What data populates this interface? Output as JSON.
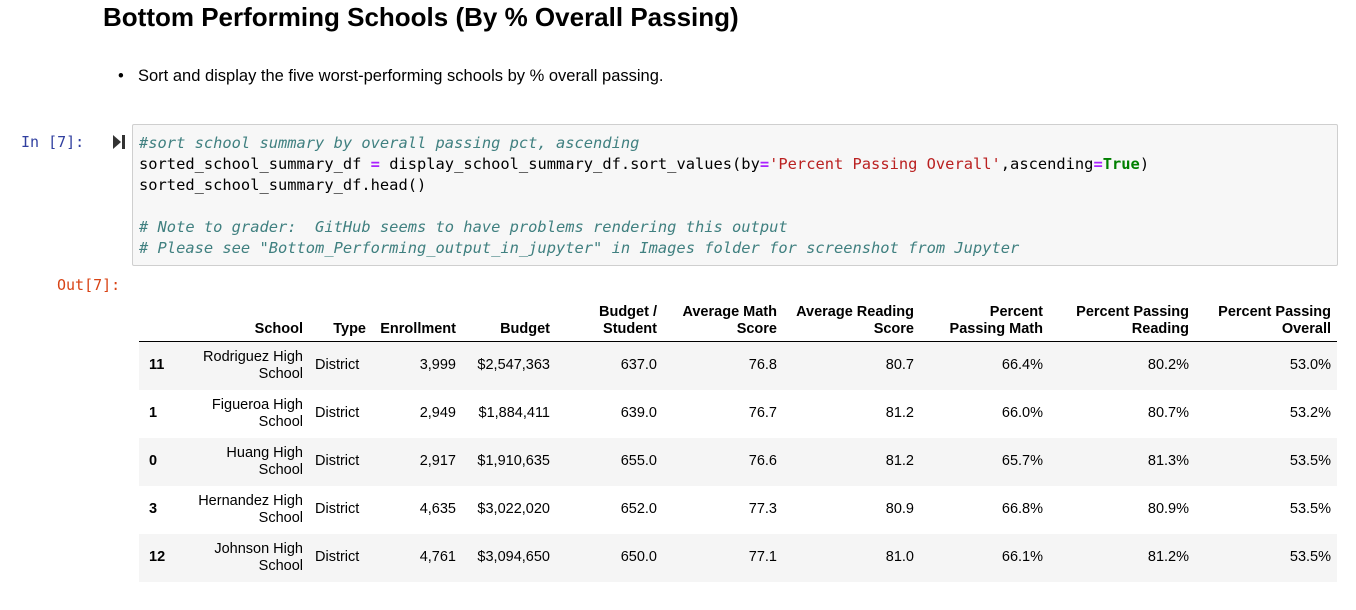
{
  "markdown": {
    "title": "Bottom Performing Schools (By % Overall Passing)",
    "bullets": [
      "Sort and display the five worst-performing schools by % overall passing."
    ]
  },
  "cell": {
    "in_prompt": "In [7]:",
    "out_prompt": "Out[7]:",
    "run_icon": "step-run-icon",
    "code": {
      "line1": "#sort school summary by overall passing pct, ascending",
      "line2_a": "sorted_school_summary_df ",
      "line2_eq": "=",
      "line2_b": " display_school_summary_df.sort_values(by",
      "line2_eq2": "=",
      "line2_str": "'Percent Passing Overall'",
      "line2_c": ",ascending",
      "line2_eq3": "=",
      "line2_kw": "True",
      "line2_d": ")",
      "line3": "sorted_school_summary_df.head()",
      "line5": "# Note to grader:  GitHub seems to have problems rendering this output",
      "line6": "# Please see \"Bottom_Performing_output_in_jupyter\" in Images folder for screenshot from Jupyter"
    }
  },
  "table": {
    "headers": {
      "school": "School",
      "type": "Type",
      "enrollment": "Enrollment",
      "budget": "Budget",
      "budget_per_student": [
        "Budget /",
        "Student"
      ],
      "avg_math": [
        "Average Math",
        "Score"
      ],
      "avg_reading": [
        "Average Reading",
        "Score"
      ],
      "pct_math": [
        "Percent",
        "Passing Math"
      ],
      "pct_reading": [
        "Percent Passing",
        "Reading"
      ],
      "pct_overall": [
        "Percent Passing",
        "Overall"
      ]
    },
    "rows": [
      {
        "index": "11",
        "school": [
          "Rodriguez High",
          "School"
        ],
        "type": "District",
        "enrollment": "3,999",
        "budget": "$2,547,363",
        "budget_per_student": "637.0",
        "avg_math": "76.8",
        "avg_reading": "80.7",
        "pct_math": "66.4%",
        "pct_reading": "80.2%",
        "pct_overall": "53.0%"
      },
      {
        "index": "1",
        "school": [
          "Figueroa High",
          "School"
        ],
        "type": "District",
        "enrollment": "2,949",
        "budget": "$1,884,411",
        "budget_per_student": "639.0",
        "avg_math": "76.7",
        "avg_reading": "81.2",
        "pct_math": "66.0%",
        "pct_reading": "80.7%",
        "pct_overall": "53.2%"
      },
      {
        "index": "0",
        "school": [
          "Huang High",
          "School"
        ],
        "type": "District",
        "enrollment": "2,917",
        "budget": "$1,910,635",
        "budget_per_student": "655.0",
        "avg_math": "76.6",
        "avg_reading": "81.2",
        "pct_math": "65.7%",
        "pct_reading": "81.3%",
        "pct_overall": "53.5%"
      },
      {
        "index": "3",
        "school": [
          "Hernandez High",
          "School"
        ],
        "type": "District",
        "enrollment": "4,635",
        "budget": "$3,022,020",
        "budget_per_student": "652.0",
        "avg_math": "77.3",
        "avg_reading": "80.9",
        "pct_math": "66.8%",
        "pct_reading": "80.9%",
        "pct_overall": "53.5%"
      },
      {
        "index": "12",
        "school": [
          "Johnson High",
          "School"
        ],
        "type": "District",
        "enrollment": "4,761",
        "budget": "$3,094,650",
        "budget_per_student": "650.0",
        "avg_math": "77.1",
        "avg_reading": "81.0",
        "pct_math": "66.1%",
        "pct_reading": "81.2%",
        "pct_overall": "53.5%"
      }
    ]
  }
}
